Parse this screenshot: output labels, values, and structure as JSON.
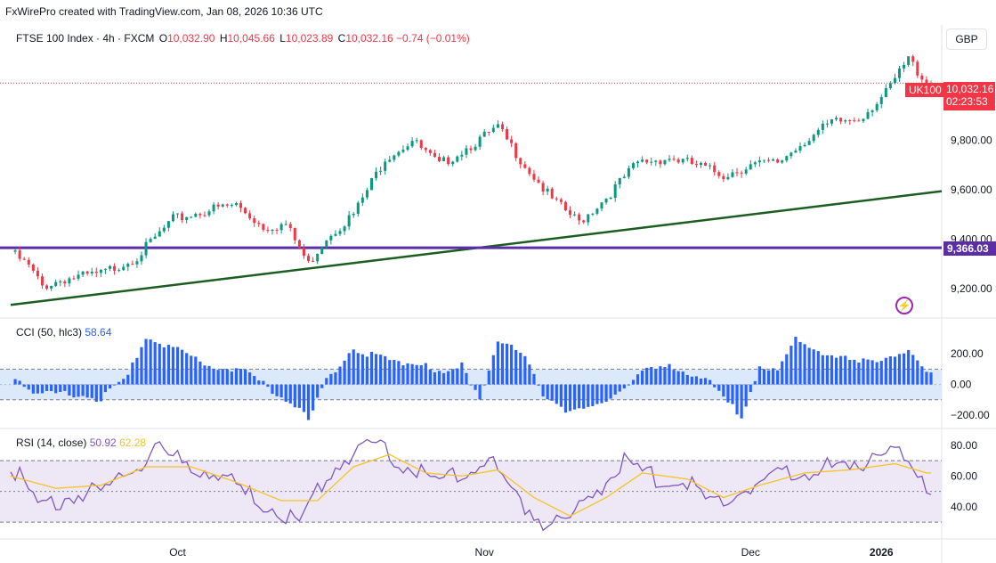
{
  "credit": "FxWirePro created with TradingView.com, Jan 08, 2026 10:36 UTC",
  "legend": {
    "symbol": "FTSE 100 Index · 4h · FXCM",
    "open_label": "O",
    "open": "10,032.90",
    "high_label": "H",
    "high": "10,045.66",
    "low_label": "L",
    "low": "10,023.89",
    "close_label": "C",
    "close": "10,032.16",
    "change": "−0.74 (−0.01%)"
  },
  "currency": "GBP",
  "ticker_tag": "UK100",
  "last_price": "10,032.16",
  "countdown": "02:23:53",
  "level_price": "9,366.03",
  "cci_title": "CCI (50, hlc3)",
  "cci_value": "58.64",
  "rsi_title": "RSI (14, close)",
  "rsi_value": "50.92",
  "rsi_ma_value": "62.28",
  "colors": {
    "up": "#089981",
    "down": "#f23645",
    "trendline": "#1b5e20",
    "level": "#5b2ea6",
    "cci": "#2962ff",
    "rsi": "#7e57c2",
    "rsi_ma": "#f7c325",
    "cci_band": "#dbe9fb",
    "rsi_band": "#ede7f6"
  },
  "bolt_icon": "lightning-icon",
  "chart_data": [
    {
      "type": "candlestick",
      "title": "FTSE 100 Index · 4h · FXCM",
      "x_ticks": [
        "Oct",
        "Nov",
        "Dec",
        "2026"
      ],
      "y_ticks": [
        "9,200.00",
        "9,400.00",
        "9,600.00",
        "9,800.00"
      ],
      "ylim": [
        9100,
        10170
      ],
      "close_path": [
        {
          "t": 0,
          "v": 9350
        },
        {
          "t": 4,
          "v": 9290
        },
        {
          "t": 7,
          "v": 9210
        },
        {
          "t": 12,
          "v": 9240
        },
        {
          "t": 20,
          "v": 9260
        },
        {
          "t": 28,
          "v": 9330
        },
        {
          "t": 36,
          "v": 9480
        },
        {
          "t": 44,
          "v": 9520
        },
        {
          "t": 50,
          "v": 9540
        },
        {
          "t": 56,
          "v": 9450
        },
        {
          "t": 61,
          "v": 9460
        },
        {
          "t": 66,
          "v": 9300
        },
        {
          "t": 70,
          "v": 9410
        },
        {
          "t": 76,
          "v": 9500
        },
        {
          "t": 83,
          "v": 9730
        },
        {
          "t": 89,
          "v": 9800
        },
        {
          "t": 95,
          "v": 9700
        },
        {
          "t": 101,
          "v": 9770
        },
        {
          "t": 108,
          "v": 9850
        },
        {
          "t": 114,
          "v": 9700
        },
        {
          "t": 120,
          "v": 9560
        },
        {
          "t": 126,
          "v": 9470
        },
        {
          "t": 132,
          "v": 9570
        },
        {
          "t": 139,
          "v": 9710
        },
        {
          "t": 146,
          "v": 9730
        },
        {
          "t": 152,
          "v": 9700
        },
        {
          "t": 158,
          "v": 9660
        },
        {
          "t": 164,
          "v": 9700
        },
        {
          "t": 170,
          "v": 9710
        },
        {
          "t": 176,
          "v": 9800
        },
        {
          "t": 182,
          "v": 9870
        },
        {
          "t": 188,
          "v": 9890
        },
        {
          "t": 194,
          "v": 9990
        },
        {
          "t": 199,
          "v": 10130
        },
        {
          "t": 203,
          "v": 10032
        }
      ],
      "overlays": {
        "trendline": {
          "from": {
            "t": 0,
            "v": 9135
          },
          "to": {
            "t": 210,
            "v": 9595
          }
        },
        "horizontal_level": 9366.03,
        "last_price_line": 10032.16
      }
    },
    {
      "type": "bar",
      "title": "CCI (50, hlc3)",
      "y_ticks": [
        "200.00",
        "0.00",
        "−200.00"
      ],
      "ylim": [
        -270,
        370
      ],
      "band": [
        -100,
        100
      ],
      "path": [
        {
          "t": 0,
          "v": 80
        },
        {
          "t": 6,
          "v": -70
        },
        {
          "t": 14,
          "v": -60
        },
        {
          "t": 20,
          "v": -100
        },
        {
          "t": 26,
          "v": 60
        },
        {
          "t": 30,
          "v": 310
        },
        {
          "t": 36,
          "v": 240
        },
        {
          "t": 42,
          "v": 140
        },
        {
          "t": 52,
          "v": 80
        },
        {
          "t": 58,
          "v": -40
        },
        {
          "t": 64,
          "v": -150
        },
        {
          "t": 66,
          "v": -240
        },
        {
          "t": 70,
          "v": 30
        },
        {
          "t": 76,
          "v": 240
        },
        {
          "t": 84,
          "v": 150
        },
        {
          "t": 92,
          "v": 140
        },
        {
          "t": 96,
          "v": 60
        },
        {
          "t": 100,
          "v": 120
        },
        {
          "t": 104,
          "v": -80
        },
        {
          "t": 108,
          "v": 300
        },
        {
          "t": 114,
          "v": 180
        },
        {
          "t": 118,
          "v": -60
        },
        {
          "t": 124,
          "v": -180
        },
        {
          "t": 130,
          "v": -150
        },
        {
          "t": 134,
          "v": -60
        },
        {
          "t": 140,
          "v": 80
        },
        {
          "t": 146,
          "v": 120
        },
        {
          "t": 154,
          "v": 40
        },
        {
          "t": 158,
          "v": -100
        },
        {
          "t": 162,
          "v": -200
        },
        {
          "t": 166,
          "v": 120
        },
        {
          "t": 170,
          "v": 80
        },
        {
          "t": 174,
          "v": 290
        },
        {
          "t": 180,
          "v": 210
        },
        {
          "t": 188,
          "v": 140
        },
        {
          "t": 194,
          "v": 180
        },
        {
          "t": 199,
          "v": 220
        },
        {
          "t": 203,
          "v": 59
        }
      ]
    },
    {
      "type": "line",
      "title": "RSI (14, close)",
      "y_ticks": [
        "80.00",
        "60.00",
        "40.00"
      ],
      "ylim": [
        22,
        88
      ],
      "band": [
        30,
        70
      ],
      "midline": 50,
      "series": [
        {
          "name": "RSI",
          "values_path": [
            {
              "t": 0,
              "v": 68
            },
            {
              "t": 6,
              "v": 40
            },
            {
              "t": 12,
              "v": 46
            },
            {
              "t": 20,
              "v": 50
            },
            {
              "t": 26,
              "v": 62
            },
            {
              "t": 32,
              "v": 78
            },
            {
              "t": 38,
              "v": 68
            },
            {
              "t": 46,
              "v": 62
            },
            {
              "t": 52,
              "v": 48
            },
            {
              "t": 58,
              "v": 40
            },
            {
              "t": 64,
              "v": 30
            },
            {
              "t": 70,
              "v": 60
            },
            {
              "t": 76,
              "v": 76
            },
            {
              "t": 82,
              "v": 80
            },
            {
              "t": 88,
              "v": 66
            },
            {
              "t": 94,
              "v": 55
            },
            {
              "t": 100,
              "v": 62
            },
            {
              "t": 106,
              "v": 70
            },
            {
              "t": 112,
              "v": 48
            },
            {
              "t": 118,
              "v": 30
            },
            {
              "t": 124,
              "v": 32
            },
            {
              "t": 130,
              "v": 52
            },
            {
              "t": 136,
              "v": 68
            },
            {
              "t": 142,
              "v": 60
            },
            {
              "t": 150,
              "v": 55
            },
            {
              "t": 156,
              "v": 40
            },
            {
              "t": 162,
              "v": 52
            },
            {
              "t": 168,
              "v": 58
            },
            {
              "t": 174,
              "v": 62
            },
            {
              "t": 180,
              "v": 66
            },
            {
              "t": 186,
              "v": 62
            },
            {
              "t": 192,
              "v": 78
            },
            {
              "t": 197,
              "v": 72
            },
            {
              "t": 203,
              "v": 51
            }
          ]
        },
        {
          "name": "RSI-based MA",
          "values_path": [
            {
              "t": 0,
              "v": 60
            },
            {
              "t": 10,
              "v": 52
            },
            {
              "t": 20,
              "v": 54
            },
            {
              "t": 30,
              "v": 66
            },
            {
              "t": 40,
              "v": 66
            },
            {
              "t": 50,
              "v": 56
            },
            {
              "t": 60,
              "v": 44
            },
            {
              "t": 68,
              "v": 44
            },
            {
              "t": 76,
              "v": 66
            },
            {
              "t": 84,
              "v": 74
            },
            {
              "t": 92,
              "v": 62
            },
            {
              "t": 100,
              "v": 60
            },
            {
              "t": 108,
              "v": 64
            },
            {
              "t": 116,
              "v": 46
            },
            {
              "t": 124,
              "v": 34
            },
            {
              "t": 132,
              "v": 46
            },
            {
              "t": 140,
              "v": 62
            },
            {
              "t": 150,
              "v": 58
            },
            {
              "t": 158,
              "v": 46
            },
            {
              "t": 166,
              "v": 54
            },
            {
              "t": 176,
              "v": 62
            },
            {
              "t": 186,
              "v": 64
            },
            {
              "t": 196,
              "v": 68
            },
            {
              "t": 203,
              "v": 62
            }
          ]
        }
      ]
    }
  ]
}
